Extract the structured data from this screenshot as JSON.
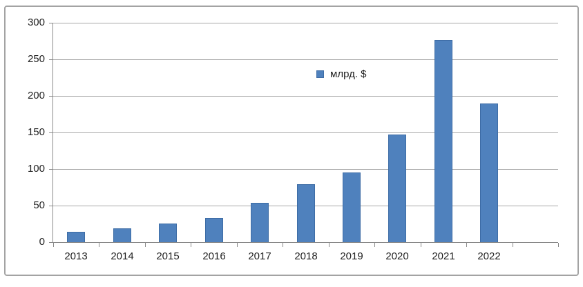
{
  "chart_data": {
    "type": "bar",
    "series_name": "млрд. $",
    "categories": [
      "2013",
      "2014",
      "2015",
      "2016",
      "2017",
      "2018",
      "2019",
      "2020",
      "2021",
      "2022"
    ],
    "values": [
      14,
      19,
      25,
      33,
      54,
      79,
      95,
      147,
      276,
      190
    ],
    "xlabel": "",
    "ylabel": "",
    "ylim": [
      0,
      300
    ],
    "ytick_step": 50,
    "ytick_labels": [
      "0",
      "50",
      "100",
      "150",
      "200",
      "250",
      "300"
    ],
    "extra_empty_category_slots": 1,
    "grid": "horizontal",
    "legend_position": "inside-top-center",
    "colors": {
      "bar_fill": "#4f81bd",
      "bar_border": "#3d6ca5",
      "gridline": "#a6a6a6",
      "axis": "#898989",
      "text": "#1f1f1f",
      "frame_border": "#a3a3a3",
      "background": "#ffffff"
    }
  }
}
